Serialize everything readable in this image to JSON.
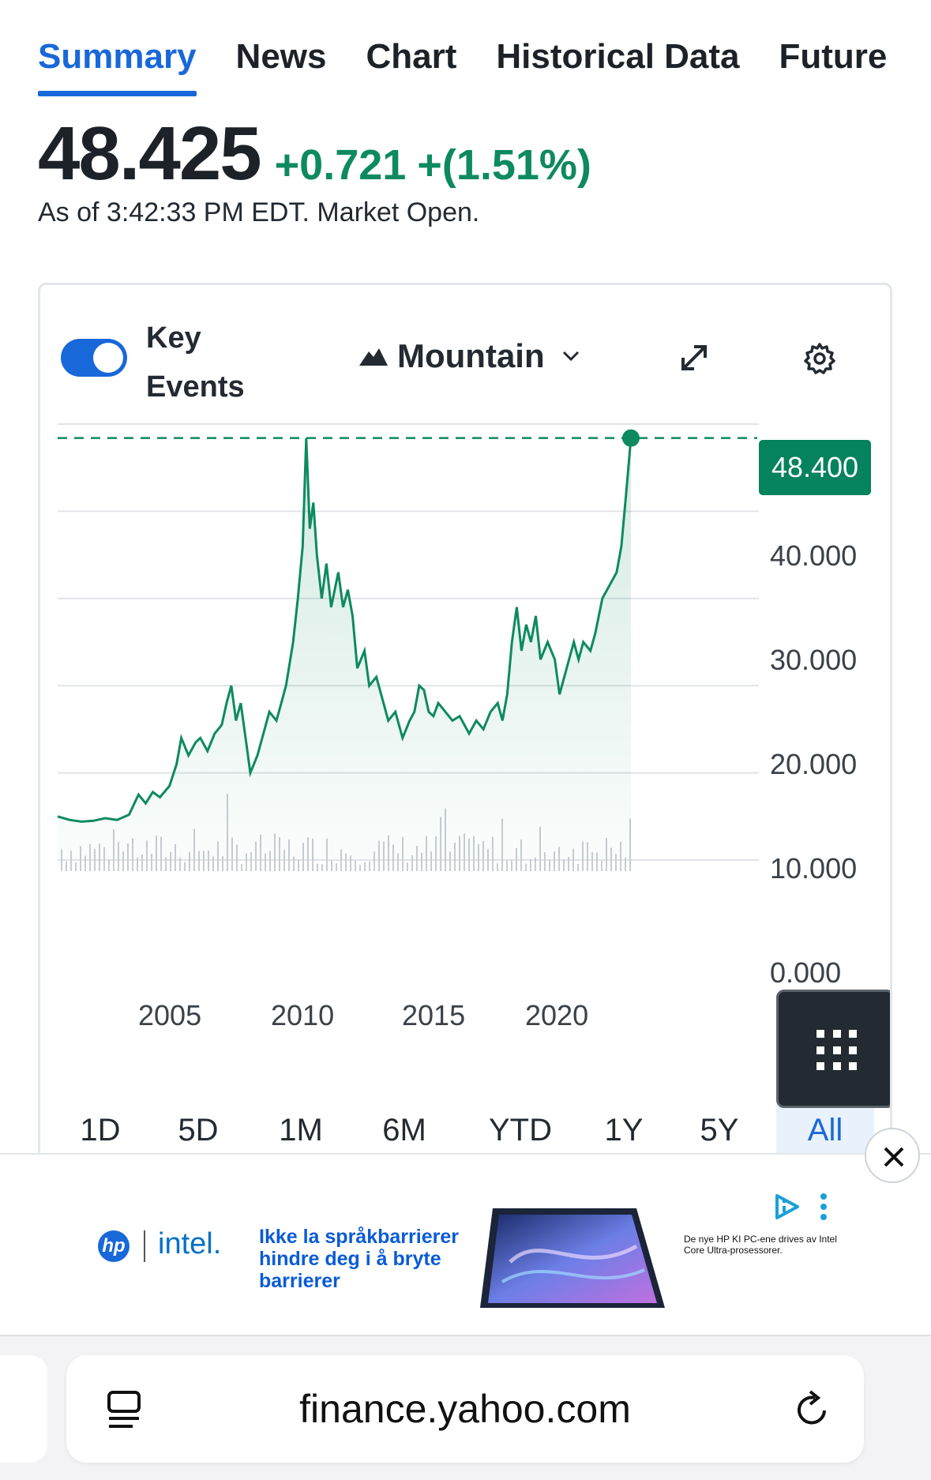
{
  "tabs": [
    {
      "label": "Summary",
      "active": true
    },
    {
      "label": "News"
    },
    {
      "label": "Chart"
    },
    {
      "label": "Historical Data"
    },
    {
      "label": "Future"
    }
  ],
  "quote": {
    "price": "48.425",
    "change": "+0.721",
    "change_percent": "+(1.51%)",
    "as_of": "As of 3:42:33 PM EDT. Market Open."
  },
  "chart_controls": {
    "key_events_label": "Key Events",
    "key_events_on": true,
    "chart_type_label": "Mountain",
    "icons": [
      "mountain-icon",
      "chevron-down-icon",
      "expand-icon",
      "gear-icon",
      "grid-icon"
    ]
  },
  "chart_data": {
    "type": "area",
    "current_price_label": "48.400",
    "current_price": 48.4,
    "y_ticks": [
      "40.000",
      "30.000",
      "20.000",
      "10.000",
      "0.000"
    ],
    "x_ticks": [
      "2005",
      "2010",
      "2015",
      "2020"
    ],
    "ylim": [
      0,
      50
    ],
    "xlim": [
      2001,
      2025.5
    ],
    "grid": true,
    "line_color": "#0d8a5f",
    "points": [
      [
        2001.0,
        5.0
      ],
      [
        2001.5,
        4.6
      ],
      [
        2002.0,
        4.4
      ],
      [
        2002.5,
        4.5
      ],
      [
        2003.0,
        4.8
      ],
      [
        2003.5,
        4.6
      ],
      [
        2004.0,
        5.2
      ],
      [
        2004.4,
        7.5
      ],
      [
        2004.7,
        6.5
      ],
      [
        2005.0,
        7.8
      ],
      [
        2005.3,
        7.2
      ],
      [
        2005.7,
        8.5
      ],
      [
        2006.0,
        11.0
      ],
      [
        2006.2,
        14.0
      ],
      [
        2006.5,
        12.0
      ],
      [
        2006.8,
        13.5
      ],
      [
        2007.0,
        14.0
      ],
      [
        2007.3,
        12.5
      ],
      [
        2007.6,
        14.5
      ],
      [
        2007.9,
        15.5
      ],
      [
        2008.1,
        18.0
      ],
      [
        2008.3,
        20.0
      ],
      [
        2008.5,
        16.0
      ],
      [
        2008.7,
        18.0
      ],
      [
        2008.9,
        14.0
      ],
      [
        2009.1,
        10.0
      ],
      [
        2009.4,
        12.0
      ],
      [
        2009.7,
        15.0
      ],
      [
        2009.9,
        17.0
      ],
      [
        2010.2,
        16.0
      ],
      [
        2010.4,
        18.0
      ],
      [
        2010.6,
        20.0
      ],
      [
        2010.9,
        25.0
      ],
      [
        2011.1,
        30.0
      ],
      [
        2011.3,
        36.0
      ],
      [
        2011.45,
        48.4
      ],
      [
        2011.6,
        38.0
      ],
      [
        2011.75,
        41.0
      ],
      [
        2011.9,
        35.0
      ],
      [
        2012.1,
        30.0
      ],
      [
        2012.3,
        34.0
      ],
      [
        2012.5,
        29.0
      ],
      [
        2012.8,
        33.0
      ],
      [
        2013.0,
        29.0
      ],
      [
        2013.2,
        31.0
      ],
      [
        2013.4,
        28.0
      ],
      [
        2013.6,
        22.0
      ],
      [
        2013.9,
        24.0
      ],
      [
        2014.1,
        20.0
      ],
      [
        2014.4,
        21.0
      ],
      [
        2014.7,
        18.0
      ],
      [
        2014.9,
        16.0
      ],
      [
        2015.2,
        17.0
      ],
      [
        2015.5,
        14.0
      ],
      [
        2015.8,
        16.0
      ],
      [
        2016.0,
        17.0
      ],
      [
        2016.2,
        20.0
      ],
      [
        2016.4,
        19.5
      ],
      [
        2016.6,
        17.0
      ],
      [
        2016.8,
        16.5
      ],
      [
        2017.0,
        18.0
      ],
      [
        2017.3,
        17.0
      ],
      [
        2017.6,
        16.0
      ],
      [
        2017.9,
        16.5
      ],
      [
        2018.1,
        15.5
      ],
      [
        2018.3,
        14.5
      ],
      [
        2018.6,
        16.0
      ],
      [
        2018.9,
        15.0
      ],
      [
        2019.2,
        17.0
      ],
      [
        2019.5,
        18.0
      ],
      [
        2019.7,
        16.0
      ],
      [
        2019.9,
        19.0
      ],
      [
        2020.1,
        25.0
      ],
      [
        2020.3,
        29.0
      ],
      [
        2020.5,
        24.0
      ],
      [
        2020.7,
        27.0
      ],
      [
        2020.9,
        25.0
      ],
      [
        2021.1,
        28.0
      ],
      [
        2021.3,
        23.0
      ],
      [
        2021.6,
        25.0
      ],
      [
        2021.9,
        23.0
      ],
      [
        2022.1,
        19.0
      ],
      [
        2022.4,
        22.0
      ],
      [
        2022.7,
        25.0
      ],
      [
        2022.9,
        23.0
      ],
      [
        2023.1,
        25.0
      ],
      [
        2023.4,
        24.0
      ],
      [
        2023.6,
        26.0
      ],
      [
        2023.9,
        30.0
      ],
      [
        2024.1,
        31.0
      ],
      [
        2024.3,
        32.0
      ],
      [
        2024.5,
        33.0
      ],
      [
        2024.7,
        36.0
      ],
      [
        2024.9,
        42.0
      ],
      [
        2025.1,
        48.4
      ]
    ]
  },
  "ranges": [
    {
      "label": "1D"
    },
    {
      "label": "5D"
    },
    {
      "label": "1M"
    },
    {
      "label": "6M"
    },
    {
      "label": "YTD"
    },
    {
      "label": "1Y"
    },
    {
      "label": "5Y"
    },
    {
      "label": "All",
      "active": true
    }
  ],
  "ad": {
    "brand_hp": "hp",
    "brand_intel": "intel.",
    "headline": "Ikke la språkbarrierer hindre deg i å bryte barrierer",
    "fine_print": "De nye HP KI PC-ene drives av Intel Core Ultra-prosessorer."
  },
  "browser": {
    "url": "finance.yahoo.com"
  }
}
